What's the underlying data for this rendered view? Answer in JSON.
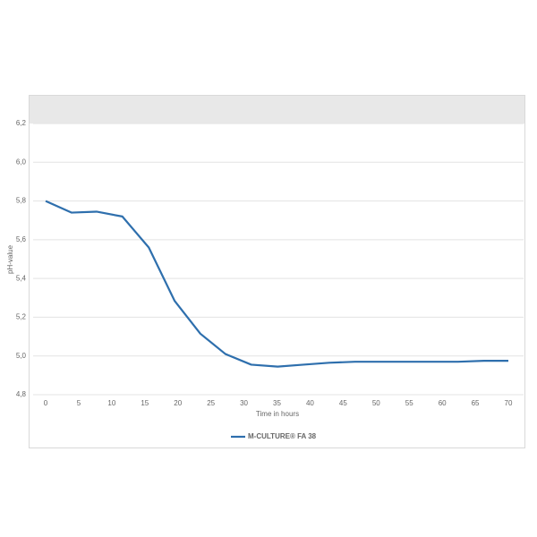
{
  "chart_data": {
    "type": "line",
    "x_label": "Time in hours",
    "y_label": "pH-value",
    "x": [
      0,
      3.9,
      7.7,
      11.6,
      15.6,
      19.5,
      23.4,
      27.2,
      31.1,
      35.1,
      39.0,
      42.9,
      46.8,
      50.8,
      54.7,
      58.5,
      62.4,
      66.3,
      70
    ],
    "series": [
      {
        "name": "M-CULTURE® FA 38",
        "color": "#2e6fad",
        "values": [
          5.8,
          5.74,
          5.745,
          5.72,
          5.56,
          5.285,
          5.115,
          5.01,
          4.955,
          4.945,
          4.955,
          4.965,
          4.97,
          4.97,
          4.97,
          4.97,
          4.97,
          4.975,
          4.975
        ]
      }
    ],
    "xlim": [
      0,
      70
    ],
    "xticks": [
      0,
      5,
      10,
      15,
      20,
      25,
      30,
      35,
      40,
      45,
      50,
      55,
      60,
      65,
      70
    ],
    "ylim": [
      4.8,
      6.2
    ],
    "yticks": [
      {
        "value": 4.8,
        "label": "4,8"
      },
      {
        "value": 5.0,
        "label": "5,0"
      },
      {
        "value": 5.2,
        "label": "5,2"
      },
      {
        "value": 5.4,
        "label": "5,4"
      },
      {
        "value": 5.6,
        "label": "5,6"
      },
      {
        "value": 5.8,
        "label": "5,8"
      },
      {
        "value": 6.0,
        "label": "6,0"
      },
      {
        "value": 6.2,
        "label": "6,2"
      }
    ],
    "grid": true,
    "legend": "bottom"
  }
}
